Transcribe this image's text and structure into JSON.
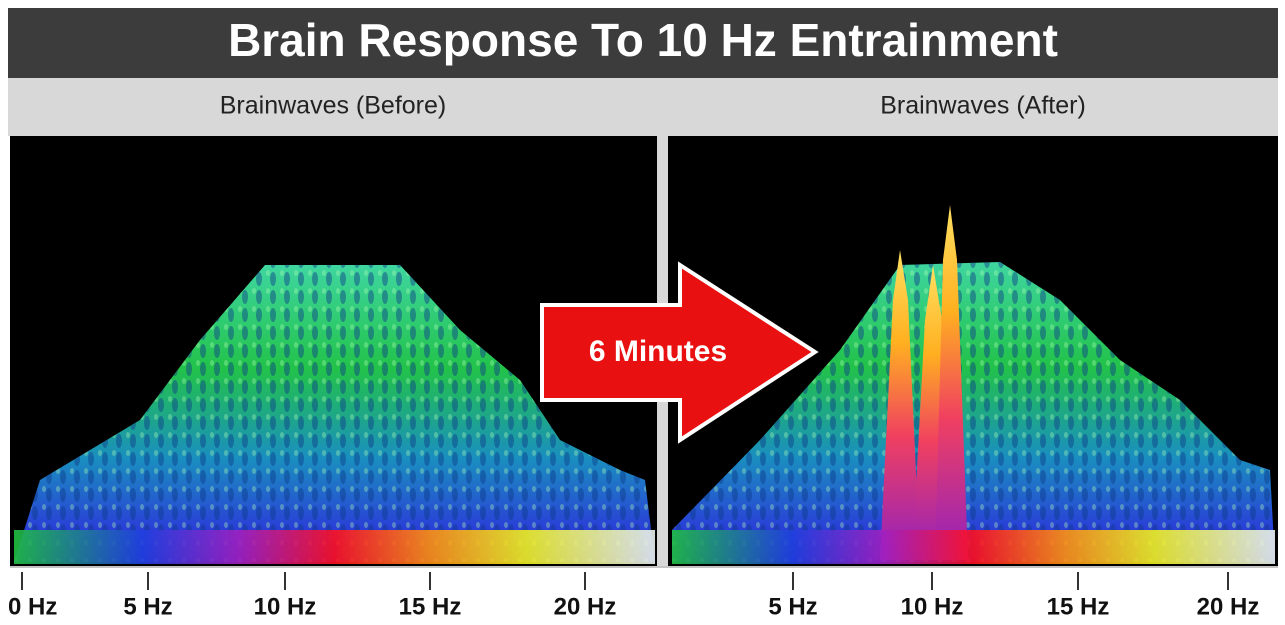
{
  "header": {
    "title": "Brain Response To 10 Hz Entrainment"
  },
  "panels": [
    {
      "label": "Brainwaves (Before)",
      "ticks": [
        "0 Hz",
        "5 Hz",
        "10 Hz",
        "15 Hz",
        "20 Hz"
      ]
    },
    {
      "label": "Brainwaves (After)",
      "ticks": [
        "5 Hz",
        "10 Hz",
        "15 Hz",
        "20 Hz"
      ]
    }
  ],
  "arrow": {
    "label": "6 Minutes"
  }
}
